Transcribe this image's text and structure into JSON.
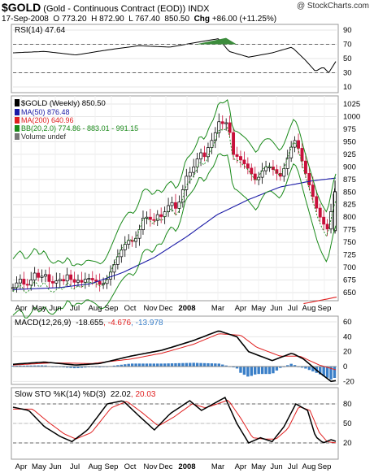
{
  "header": {
    "symbol": "$GOLD",
    "description": "(Gold - Continuous Contract (EOD))",
    "exchange": "INDX",
    "brand": "@ StockCharts.com",
    "date": "17-Sep-2008",
    "open_label": "O",
    "open": "773.20",
    "high_label": "H",
    "high": "872.90",
    "low_label": "L",
    "low": "767.40",
    "close": "850.50",
    "chg_label": "Chg",
    "chg": "+86.00 (+11.25%)"
  },
  "rsi": {
    "label": "RSI(14) 47.64",
    "ticks": [
      "90",
      "70",
      "50",
      "30",
      "10"
    ]
  },
  "price": {
    "ticks": [
      "1025",
      "1000",
      "975",
      "950",
      "925",
      "900",
      "875",
      "850",
      "825",
      "800",
      "775",
      "750",
      "725",
      "700",
      "675",
      "650"
    ],
    "legend": [
      {
        "text": "$GOLD (Weekly) 850.50",
        "color": "#000000"
      },
      {
        "text": "MA(50) 876.48",
        "color": "#1a1aa6"
      },
      {
        "text": "MA(200) 640.96",
        "color": "#e02020"
      },
      {
        "text": "BB(20,2.0) 774.86 - 883.01 - 991.15",
        "color": "#1a8a1a"
      },
      {
        "text": "Volume undef",
        "color": "#333333"
      }
    ]
  },
  "x_axis": {
    "labels": [
      "Apr",
      "May",
      "Jun",
      "Jul",
      "Aug",
      "Sep",
      "Oct",
      "Nov",
      "Dec",
      "2008",
      "Mar",
      "Apr",
      "May",
      "Jun",
      "Jul",
      "Aug",
      "Sep"
    ]
  },
  "macd": {
    "label": "MACD(12,26,9)",
    "v1": "-18.655",
    "v2": "-4.676",
    "v3": "-13.978",
    "ticks": [
      "60",
      "40",
      "20",
      "0",
      "-20"
    ]
  },
  "sto": {
    "label": "Slow STO %K(14) %D(3)",
    "k": "22.02",
    "d": "20.03",
    "ticks": [
      "80",
      "50",
      "20"
    ]
  },
  "colors": {
    "up": "#000000",
    "down": "#c8103a",
    "ma50": "#1a1aa6",
    "ma200": "#e02020",
    "bb": "#1a8a1a",
    "hist": "#3a7fc8",
    "rsi_fill": "#3c8c3c"
  },
  "chart_data": {
    "type": "line",
    "title": "$GOLD (Gold - Continuous Contract (EOD)) INDX",
    "series": [
      {
        "name": "$GOLD (Weekly)",
        "x": [
          "Apr",
          "May",
          "Jun",
          "Jul",
          "Aug",
          "Sep",
          "Oct",
          "Nov",
          "Dec",
          "2008",
          "Mar",
          "Apr",
          "May",
          "Jun",
          "Jul",
          "Aug",
          "Sep"
        ],
        "values": [
          680,
          672,
          658,
          680,
          675,
          715,
          745,
          805,
          800,
          880,
          990,
          915,
          880,
          890,
          945,
          830,
          850.5
        ]
      },
      {
        "name": "MA(50)",
        "x": [
          "Apr",
          "Jun",
          "Aug",
          "Oct",
          "Dec",
          "2008",
          "Mar",
          "May",
          "Jul",
          "Aug",
          "Sep"
        ],
        "values": [
          655,
          662,
          672,
          695,
          735,
          765,
          805,
          835,
          862,
          870,
          876.48
        ]
      },
      {
        "name": "MA(200)",
        "x": [
          "Aug",
          "Sep"
        ],
        "values": [
          632,
          640.96
        ]
      }
    ],
    "ylim": [
      640,
      1030
    ],
    "subcharts": [
      {
        "name": "RSI(14)",
        "last": 47.64,
        "ylim": [
          10,
          90
        ]
      },
      {
        "name": "MACD(12,26,9)",
        "last": [
          -18.655,
          -4.676,
          -13.978
        ],
        "ylim": [
          -25,
          65
        ]
      },
      {
        "name": "Slow STO %K(14) %D(3)",
        "last": [
          22.02,
          20.03
        ],
        "ylim": [
          0,
          100
        ]
      }
    ]
  }
}
